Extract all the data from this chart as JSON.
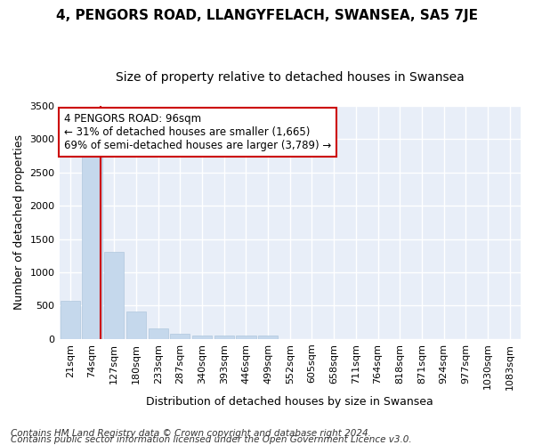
{
  "title": "4, PENGORS ROAD, LLANGYFELACH, SWANSEA, SA5 7JE",
  "subtitle": "Size of property relative to detached houses in Swansea",
  "xlabel": "Distribution of detached houses by size in Swansea",
  "ylabel": "Number of detached properties",
  "categories": [
    "21sqm",
    "74sqm",
    "127sqm",
    "180sqm",
    "233sqm",
    "287sqm",
    "340sqm",
    "393sqm",
    "446sqm",
    "499sqm",
    "552sqm",
    "605sqm",
    "658sqm",
    "711sqm",
    "764sqm",
    "818sqm",
    "871sqm",
    "924sqm",
    "977sqm",
    "1030sqm",
    "1083sqm"
  ],
  "values": [
    570,
    2900,
    1300,
    415,
    155,
    80,
    55,
    55,
    50,
    45,
    0,
    0,
    0,
    0,
    0,
    0,
    0,
    0,
    0,
    0,
    0
  ],
  "bar_color": "#c5d8ec",
  "bar_edge_color": "#b0c8de",
  "annotation_text": "4 PENGORS ROAD: 96sqm\n← 31% of detached houses are smaller (1,665)\n69% of semi-detached houses are larger (3,789) →",
  "annotation_box_facecolor": "#ffffff",
  "annotation_box_edgecolor": "#cc0000",
  "vline_color": "#cc0000",
  "vline_x": 1.4,
  "ylim": [
    0,
    3500
  ],
  "yticks": [
    0,
    500,
    1000,
    1500,
    2000,
    2500,
    3000,
    3500
  ],
  "bg_color": "#ffffff",
  "plot_bg_color": "#e8eef8",
  "grid_color": "#ffffff",
  "title_fontsize": 11,
  "subtitle_fontsize": 10,
  "axis_label_fontsize": 9,
  "tick_fontsize": 8,
  "annot_fontsize": 8.5,
  "footer_fontsize": 7.5,
  "footer_line1": "Contains HM Land Registry data © Crown copyright and database right 2024.",
  "footer_line2": "Contains public sector information licensed under the Open Government Licence v3.0."
}
